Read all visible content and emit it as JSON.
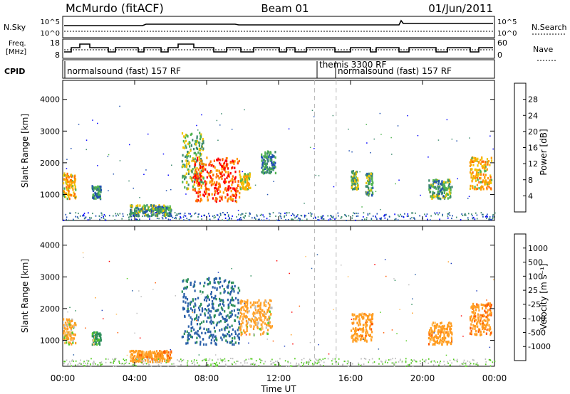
{
  "header": {
    "station": "McMurdo (fitACF)",
    "beam": "Beam 01",
    "date": "01/Jun/2011"
  },
  "strip_labels": {
    "nsky": "N.Sky",
    "nsky_ticks": [
      "10^5",
      "10^0"
    ],
    "nsearch": "N.Search",
    "nsearch_ticks": [
      "10^5",
      "10^0"
    ],
    "freq": "Freq.",
    "freq_unit": "[MHz]",
    "freq_ticks": [
      "18",
      "8"
    ],
    "nave": "Nave",
    "nave_ticks": [
      "60",
      "0"
    ],
    "cpid": "CPID"
  },
  "cpid_segments": [
    {
      "label": "normalsound (fast) 157 RF",
      "start_hour": 0
    },
    {
      "label": "themis 3300 RF",
      "start_hour": 14.0
    },
    {
      "label": "normalsound (fast) 157 RF",
      "start_hour": 15.2
    }
  ],
  "colors": {
    "power": [
      "#0000ff",
      "#1f4fb0",
      "#3d8a6e",
      "#4fb34f",
      "#f0c400",
      "#ff9c00",
      "#ff6a00",
      "#ff0000"
    ],
    "velocity": [
      "#ff0000",
      "#ff5a00",
      "#ff9d22",
      "#ffc266",
      "#bdbdbd",
      "#55cc22",
      "#2e8f5b",
      "#2a5fa8",
      "#1f3fbf"
    ]
  },
  "chart_data": [
    {
      "type": "heatmap",
      "title": "Power",
      "ylabel": "Slant Range [km]",
      "xlim_hours": [
        0,
        24
      ],
      "ylim": [
        180,
        4600
      ],
      "yticks": [
        "1000",
        "2000",
        "3000",
        "4000"
      ],
      "colorbar_label": "Power [dB]",
      "colorbar_ticks": [
        "4",
        "8",
        "12",
        "16",
        "20",
        "24",
        "28"
      ],
      "clim": [
        0,
        32
      ],
      "echo_regions": [
        {
          "t0": 0.0,
          "t1": 0.7,
          "r0": 900,
          "r1": 1700,
          "level": 20
        },
        {
          "t0": 1.6,
          "t1": 2.1,
          "r0": 900,
          "r1": 1300,
          "level": 10
        },
        {
          "t0": 3.7,
          "t1": 6.0,
          "r0": 350,
          "r1": 700,
          "level": 12
        },
        {
          "t0": 6.6,
          "t1": 7.8,
          "r0": 1200,
          "r1": 3000,
          "level": 14
        },
        {
          "t0": 7.2,
          "t1": 9.8,
          "r0": 800,
          "r1": 2200,
          "level": 27
        },
        {
          "t0": 9.8,
          "t1": 10.4,
          "r0": 1200,
          "r1": 1700,
          "level": 18
        },
        {
          "t0": 11.0,
          "t1": 11.8,
          "r0": 1700,
          "r1": 2400,
          "level": 10
        },
        {
          "t0": 16.0,
          "t1": 16.4,
          "r0": 1200,
          "r1": 1800,
          "level": 14
        },
        {
          "t0": 16.8,
          "t1": 17.2,
          "r0": 1000,
          "r1": 1700,
          "level": 12
        },
        {
          "t0": 20.3,
          "t1": 21.6,
          "r0": 900,
          "r1": 1500,
          "level": 12
        },
        {
          "t0": 22.6,
          "t1": 23.8,
          "r0": 1200,
          "r1": 2200,
          "level": 20
        }
      ]
    },
    {
      "type": "heatmap",
      "title": "Velocity",
      "ylabel": "Slant Range [km]",
      "xlabel": "Time UT",
      "xlim_hours": [
        0,
        24
      ],
      "ylim": [
        180,
        4600
      ],
      "yticks": [
        "1000",
        "2000",
        "3000",
        "4000"
      ],
      "xticks": [
        "00:00",
        "04:00",
        "08:00",
        "12:00",
        "16:00",
        "20:00",
        "00:00"
      ],
      "colorbar_label": "Velocity [m s⁻¹]",
      "colorbar_ticks": [
        "1000",
        "500",
        "100",
        "25",
        "-25",
        "-100",
        "-500",
        "-1000"
      ],
      "echo_regions": [
        {
          "t0": 0.0,
          "t1": 0.7,
          "r0": 900,
          "r1": 1700,
          "velocity": -150
        },
        {
          "t0": 1.6,
          "t1": 2.1,
          "r0": 900,
          "r1": 1300,
          "velocity": 200
        },
        {
          "t0": 3.7,
          "t1": 6.0,
          "r0": 350,
          "r1": 700,
          "velocity": -300
        },
        {
          "t0": 6.6,
          "t1": 9.8,
          "r0": 900,
          "r1": 3000,
          "velocity": 600
        },
        {
          "t0": 9.8,
          "t1": 11.6,
          "r0": 1200,
          "r1": 2300,
          "velocity": -200
        },
        {
          "t0": 16.0,
          "t1": 17.2,
          "r0": 1000,
          "r1": 1900,
          "velocity": -300
        },
        {
          "t0": 20.3,
          "t1": 21.6,
          "r0": 900,
          "r1": 1600,
          "velocity": -300
        },
        {
          "t0": 22.6,
          "t1": 23.8,
          "r0": 1200,
          "r1": 2200,
          "velocity": -400
        }
      ]
    }
  ]
}
